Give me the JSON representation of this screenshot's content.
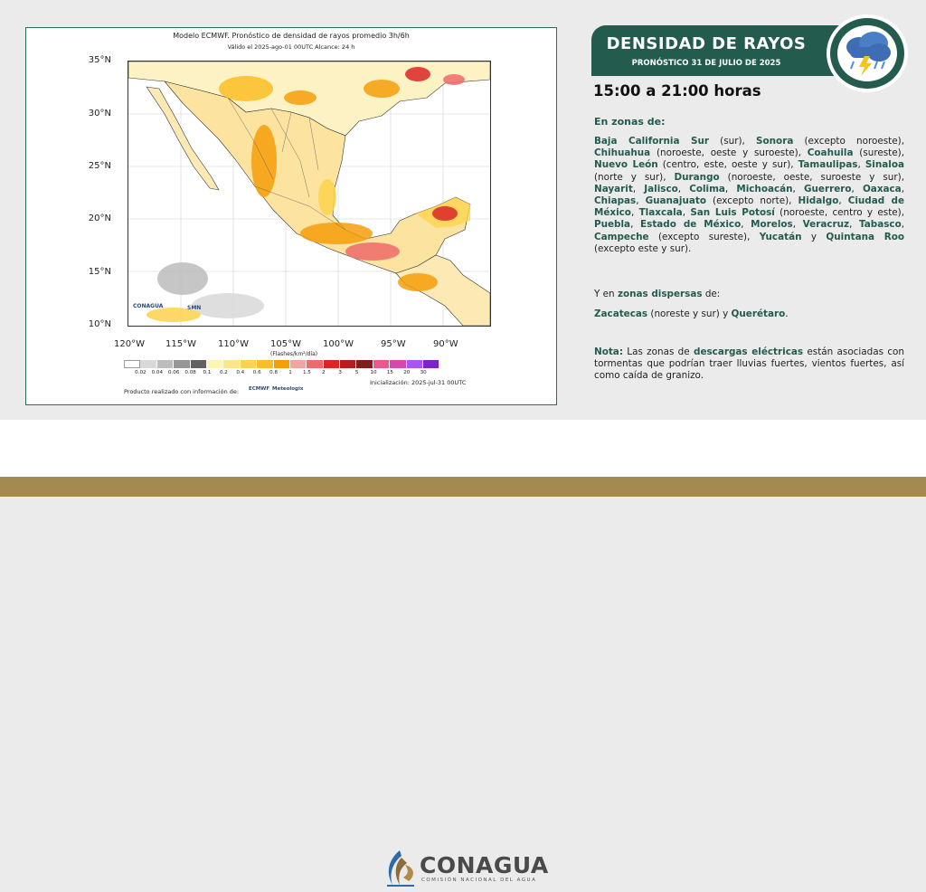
{
  "map": {
    "title": "Modelo ECMWF. Pronóstico de densidad de rayos promedio 3h/6h",
    "subtitle": "Válido el 2025-ago-01 00UTC     Alcance: 24 h",
    "lat_labels": [
      "35°N",
      "30°N",
      "25°N",
      "20°N",
      "15°N",
      "10°N"
    ],
    "lon_labels": [
      "120°W",
      "115°W",
      "110°W",
      "105°W",
      "100°W",
      "95°W",
      "90°W"
    ],
    "colorbar_unit": "(Flashes/km²/día)",
    "colorbar_ticks": [
      "0.02",
      "0.04",
      "0.06",
      "0.08",
      "0.1",
      "0.2",
      "0.4",
      "0.6",
      "0.8",
      "1",
      "1.5",
      "2",
      "3",
      "5",
      "10",
      "15",
      "20",
      "30"
    ],
    "colorbar_colors": [
      "#ffffff",
      "#d9d9d9",
      "#bdbdbd",
      "#969696",
      "#636363",
      "#fdf6b0",
      "#fde68a",
      "#fcd34d",
      "#fbbf24",
      "#f59e0b",
      "#f4a3a3",
      "#ef6b6b",
      "#dc2626",
      "#b91c1c",
      "#7f1d1d",
      "#f0568c",
      "#d946b0",
      "#a855f7",
      "#7e22ce"
    ],
    "credit": "Producto realizado con información de:",
    "init": "Inicialización: 2025-jul-31 00UTC",
    "logo_conagua": "CONAGUA",
    "logo_smn": "SMN",
    "logo_ecmwf": "ECMWF",
    "logo_meteologix": "Meteologix"
  },
  "banner": {
    "title": "DENSIDAD DE RAYOS",
    "subtitle": "PRONÓSTICO 31 DE JULIO DE 2025",
    "icon": "storm-cloud-icon"
  },
  "time_range": "15:00 a 21:00 horas",
  "zones_heading": "En zonas de:",
  "zones": [
    {
      "state": "Baja California Sur",
      "detail": " (sur), "
    },
    {
      "state": "Sonora",
      "detail": " (excepto noroeste), "
    },
    {
      "state": "Chihuahua",
      "detail": " (noroeste, oeste y suroeste), "
    },
    {
      "state": "Coahuila",
      "detail": " (sureste), "
    },
    {
      "state": "Nuevo León",
      "detail": " (centro, este, oeste y sur), "
    },
    {
      "state": "Tamaulipas",
      "detail": ", "
    },
    {
      "state": "Sinaloa",
      "detail": " (norte y sur), "
    },
    {
      "state": "Durango",
      "detail": " (noroeste, oeste, suroeste y sur), "
    },
    {
      "state": "Nayarit",
      "detail": ", "
    },
    {
      "state": "Jalisco",
      "detail": ", "
    },
    {
      "state": "Colima",
      "detail": ", "
    },
    {
      "state": "Michoacán",
      "detail": ", "
    },
    {
      "state": "Guerrero",
      "detail": ", "
    },
    {
      "state": "Oaxaca",
      "detail": ", "
    },
    {
      "state": "Chiapas",
      "detail": ", "
    },
    {
      "state": "Guanajuato",
      "detail": " (excepto norte), "
    },
    {
      "state": "Hidalgo",
      "detail": ", "
    },
    {
      "state": "Ciudad de México",
      "detail": ", "
    },
    {
      "state": "Tlaxcala",
      "detail": ", "
    },
    {
      "state": "San Luis Potosí",
      "detail": " (noroeste, centro y este), "
    },
    {
      "state": "Puebla",
      "detail": ", "
    },
    {
      "state": "Estado de México",
      "detail": ", "
    },
    {
      "state": "Morelos",
      "detail": ", "
    },
    {
      "state": "Veracruz",
      "detail": ", "
    },
    {
      "state": "Tabasco",
      "detail": ", "
    },
    {
      "state": "Campeche",
      "detail": " (excepto sureste), "
    },
    {
      "state": "Yucatán",
      "detail": " y "
    },
    {
      "state": "Quintana Roo",
      "detail": " (excepto este y sur)."
    }
  ],
  "dispersas_intro": "Y en ",
  "dispersas_bold": "zonas dispersas",
  "dispersas_end": " de:",
  "dispersas_list": [
    {
      "state": "Zacatecas",
      "detail": " (noreste y sur) y "
    },
    {
      "state": "Querétaro",
      "detail": "."
    }
  ],
  "nota": {
    "label": "Nota:",
    "text1": " Las zonas de ",
    "bold": "descargas eléctricas",
    "text2": " están asociadas con tormentas que podrían traer lluvias fuertes, vientos fuertes, así como caída de granizo."
  },
  "footer": {
    "brand": "CONAGUA",
    "sub": "COMISIÓN NACIONAL DEL AGUA"
  }
}
